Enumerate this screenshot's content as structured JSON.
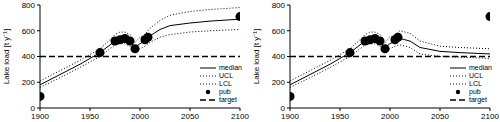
{
  "chart_data": [
    {
      "type": "line",
      "ylabel": "Lake load [t y⁻¹]",
      "xlim": [
        1900,
        2100
      ],
      "xticks": [
        1900,
        1950,
        2000,
        2050,
        2100
      ],
      "ylim": [
        0,
        800
      ],
      "yticks": [
        0,
        200,
        400,
        600,
        800
      ],
      "legend": "lower right",
      "series": [
        {
          "name": "median",
          "type": "line",
          "line_style": "solid",
          "color": "#000000",
          "x": [
            1900,
            1920,
            1940,
            1960,
            1970,
            1975,
            1980,
            1985,
            1990,
            1995,
            2000,
            2005,
            2010,
            2020,
            2030,
            2050,
            2070,
            2100
          ],
          "values": [
            180,
            260,
            340,
            430,
            490,
            520,
            540,
            540,
            520,
            470,
            500,
            520,
            560,
            610,
            640,
            660,
            675,
            690
          ]
        },
        {
          "name": "UCL",
          "type": "line",
          "line_style": "dotted",
          "color": "#000000",
          "x": [
            1900,
            1920,
            1940,
            1960,
            1970,
            1975,
            1980,
            1985,
            1990,
            1995,
            2000,
            2005,
            2010,
            2020,
            2030,
            2050,
            2070,
            2100
          ],
          "values": [
            210,
            290,
            370,
            460,
            530,
            570,
            590,
            590,
            570,
            510,
            550,
            570,
            620,
            680,
            720,
            750,
            765,
            780
          ]
        },
        {
          "name": "LCL",
          "type": "line",
          "line_style": "dotted",
          "color": "#000000",
          "x": [
            1900,
            1920,
            1940,
            1960,
            1970,
            1975,
            1980,
            1985,
            1990,
            1995,
            2000,
            2005,
            2010,
            2020,
            2030,
            2050,
            2070,
            2100
          ],
          "values": [
            160,
            235,
            315,
            400,
            460,
            490,
            500,
            500,
            480,
            440,
            460,
            480,
            510,
            550,
            570,
            590,
            600,
            610
          ]
        },
        {
          "name": "pub",
          "type": "scatter",
          "marker": "circle",
          "color": "#000000",
          "x": [
            1900,
            1960,
            1975,
            1980,
            1985,
            1990,
            1995,
            2005,
            2008,
            2100
          ],
          "values": [
            90,
            430,
            520,
            530,
            540,
            520,
            460,
            530,
            550,
            710
          ]
        },
        {
          "name": "target",
          "type": "line",
          "line_style": "dashed",
          "color": "#000000",
          "x": [
            1900,
            2100
          ],
          "values": [
            400,
            400
          ]
        }
      ]
    },
    {
      "type": "line",
      "ylabel": "Lake load [t y⁻¹]",
      "xlim": [
        1900,
        2100
      ],
      "xticks": [
        1900,
        1950,
        2000,
        2050,
        2100
      ],
      "ylim": [
        0,
        800
      ],
      "yticks": [
        0,
        200,
        400,
        600,
        800
      ],
      "legend": "lower right",
      "series": [
        {
          "name": "median",
          "type": "line",
          "line_style": "solid",
          "color": "#000000",
          "x": [
            1900,
            1920,
            1940,
            1960,
            1970,
            1975,
            1980,
            1985,
            1990,
            1995,
            2000,
            2005,
            2010,
            2020,
            2030,
            2050,
            2070,
            2100
          ],
          "values": [
            180,
            260,
            340,
            430,
            490,
            520,
            540,
            540,
            520,
            470,
            500,
            520,
            540,
            520,
            470,
            440,
            430,
            420
          ]
        },
        {
          "name": "UCL",
          "type": "line",
          "line_style": "dotted",
          "color": "#000000",
          "x": [
            1900,
            1920,
            1940,
            1960,
            1970,
            1975,
            1980,
            1985,
            1990,
            1995,
            2000,
            2005,
            2010,
            2020,
            2030,
            2050,
            2070,
            2100
          ],
          "values": [
            210,
            290,
            370,
            460,
            530,
            570,
            590,
            590,
            570,
            510,
            550,
            570,
            600,
            580,
            520,
            480,
            470,
            460
          ]
        },
        {
          "name": "LCL",
          "type": "line",
          "line_style": "dotted",
          "color": "#000000",
          "x": [
            1900,
            1920,
            1940,
            1960,
            1970,
            1975,
            1980,
            1985,
            1990,
            1995,
            2000,
            2005,
            2010,
            2020,
            2030,
            2050,
            2070,
            2100
          ],
          "values": [
            160,
            235,
            315,
            400,
            460,
            490,
            500,
            500,
            480,
            440,
            460,
            480,
            490,
            470,
            420,
            400,
            395,
            385
          ]
        },
        {
          "name": "pub",
          "type": "scatter",
          "marker": "circle",
          "color": "#000000",
          "x": [
            1900,
            1960,
            1975,
            1980,
            1985,
            1990,
            1995,
            2005,
            2008,
            2100
          ],
          "values": [
            90,
            430,
            520,
            530,
            540,
            520,
            460,
            530,
            550,
            710
          ]
        },
        {
          "name": "target",
          "type": "line",
          "line_style": "dashed",
          "color": "#000000",
          "x": [
            1900,
            2100
          ],
          "values": [
            400,
            400
          ]
        }
      ]
    }
  ]
}
